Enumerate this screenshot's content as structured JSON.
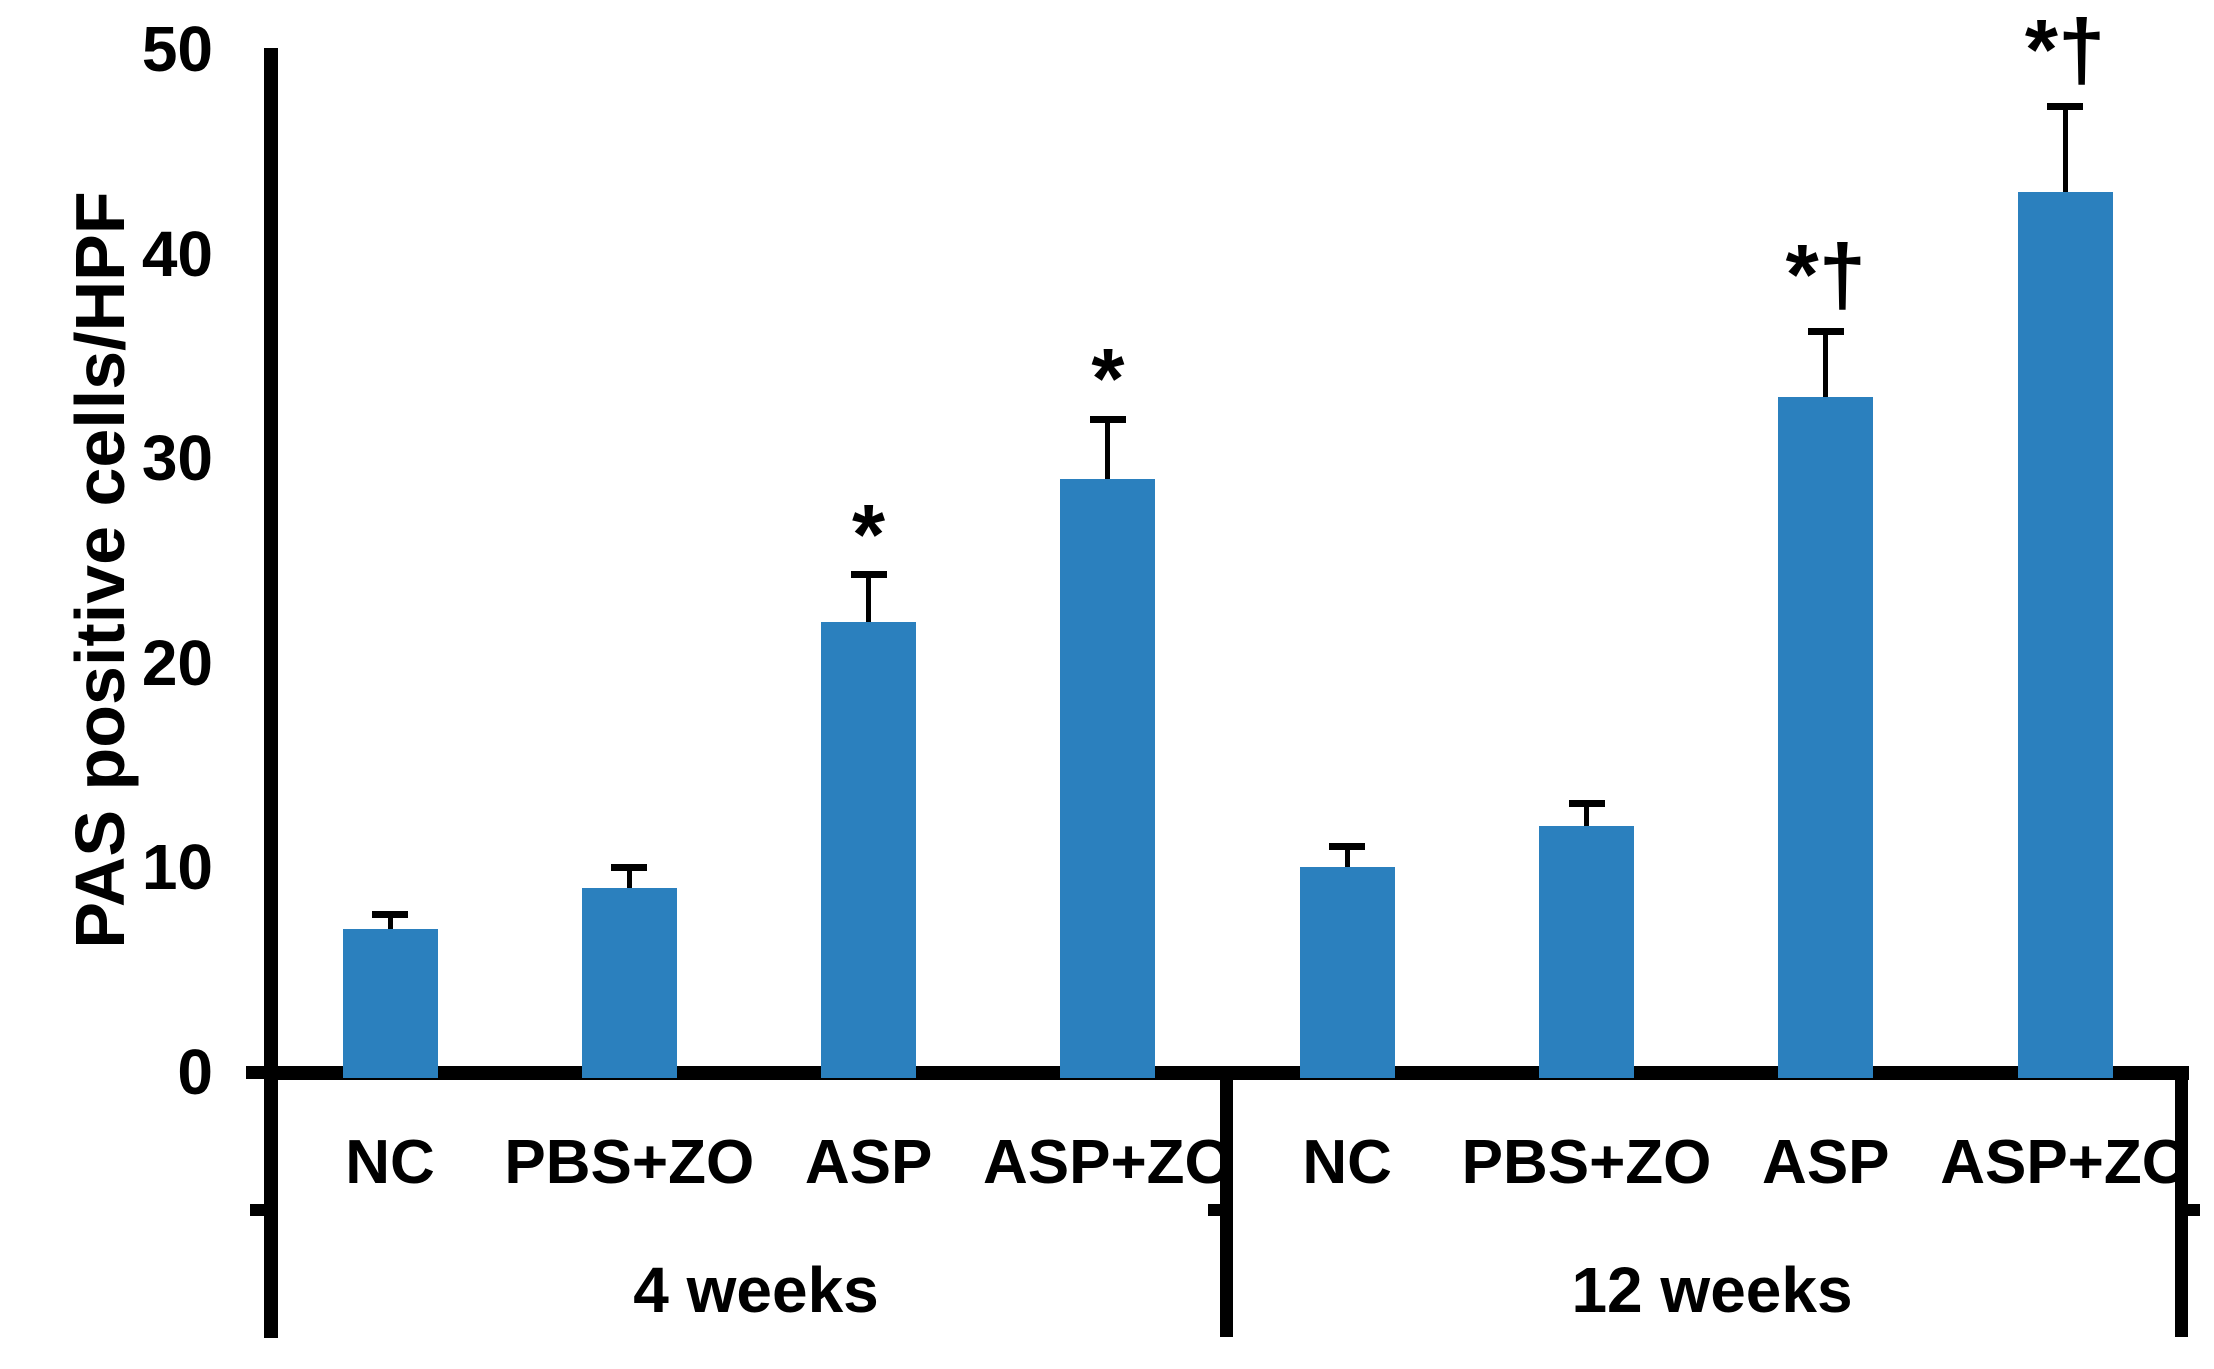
{
  "chart_data": {
    "type": "bar",
    "title": "",
    "ylabel": "PAS positive cells/HPF",
    "xlabel": "",
    "ylim": [
      0,
      50
    ],
    "yticks": [
      "0",
      "10",
      "20",
      "30",
      "40",
      "50"
    ],
    "ytick_values": [
      0,
      10,
      20,
      30,
      40,
      50
    ],
    "grid": "off",
    "legend": "none",
    "bar_color": "#2b80be",
    "axis_color": "#000000",
    "error_bars": "upper",
    "groups": [
      {
        "label": "4 weeks",
        "categories": [
          "NC",
          "PBS+ZO",
          "ASP",
          "ASP+ZO"
        ],
        "values": [
          7,
          9,
          22,
          29
        ],
        "errors": [
          0.7,
          1.0,
          2.3,
          2.9
        ],
        "annotations": [
          "",
          "",
          "*",
          "*"
        ]
      },
      {
        "label": "12 weeks",
        "categories": [
          "NC",
          "PBS+ZO",
          "ASP",
          "ASP+ZO"
        ],
        "values": [
          10,
          12,
          33,
          43
        ],
        "errors": [
          1.0,
          1.1,
          3.2,
          4.2
        ],
        "annotations": [
          "",
          "",
          "*†",
          "*†"
        ]
      }
    ]
  }
}
